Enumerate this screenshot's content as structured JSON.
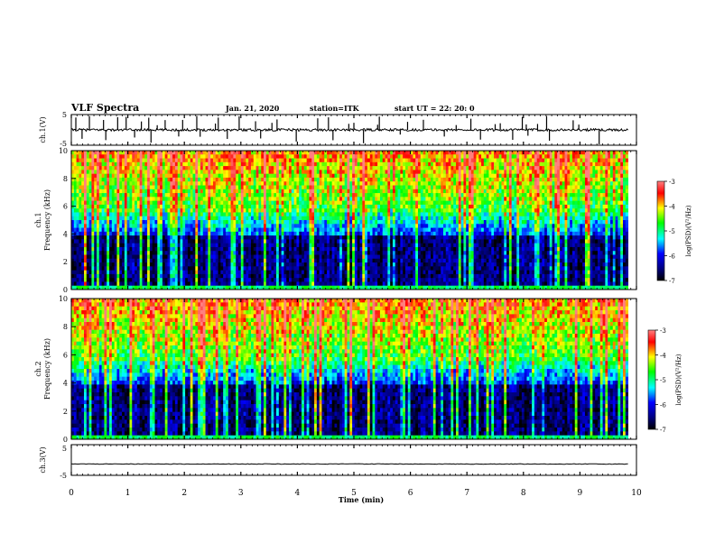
{
  "header": {
    "title": "VLF Spectra",
    "date": "Jan. 21, 2020",
    "station": "station=ITK",
    "start": "start UT =  22: 20: 0"
  },
  "chart_data": [
    {
      "type": "line",
      "panel": "ch1-waveform",
      "ylabel": "ch.1(V)",
      "ylim": [
        -5,
        5
      ],
      "yticks": [
        "5",
        "-5"
      ],
      "baseline": 0,
      "spikes_min": [
        0.08,
        0.19,
        0.32,
        0.57,
        0.61,
        0.82,
        0.97,
        1.12,
        1.24,
        1.37,
        1.41,
        1.52,
        1.66,
        1.9,
        1.97,
        2.22,
        2.28,
        2.55,
        2.6,
        2.76,
        2.97,
        3.26,
        3.35,
        3.55,
        3.64,
        3.98,
        4.36,
        4.55,
        4.63,
        4.91,
        5.0,
        5.17,
        5.42,
        5.45,
        5.82,
        5.95,
        6.23,
        6.6,
        6.81,
        7.07,
        7.24,
        7.5,
        7.59,
        7.81,
        7.98,
        8.05,
        8.08,
        8.25,
        8.41,
        8.46,
        8.88,
        8.98,
        9.34
      ]
    },
    {
      "type": "heatmap",
      "panel": "ch1-spectrogram",
      "ylabel": "ch.1\nFrequency (kHz)",
      "ylabel_lines": [
        "ch.1",
        "Frequency (kHz)"
      ],
      "ylim": [
        0,
        10
      ],
      "yticks": [
        "0",
        "2",
        "4",
        "6",
        "8",
        "10"
      ],
      "xlim": [
        0,
        9.85
      ],
      "colorbar": {
        "label": "log(PSD)(V²/Hz)",
        "range": [
          -7,
          -3
        ],
        "ticks": [
          "-3",
          "-4",
          "-5",
          "-6",
          "-7"
        ]
      }
    },
    {
      "type": "heatmap",
      "panel": "ch2-spectrogram",
      "ylabel": "ch.2\nFrequency (kHz)",
      "ylabel_lines": [
        "ch.2",
        "Frequency (kHz)"
      ],
      "ylim": [
        0,
        10
      ],
      "yticks": [
        "0",
        "2",
        "4",
        "6",
        "8",
        "10"
      ],
      "xlim": [
        0,
        9.85
      ],
      "colorbar": {
        "label": "log(PSD)(V²/Hz)",
        "range": [
          -7,
          -3
        ],
        "ticks": [
          "-3",
          "-4",
          "-5",
          "-6",
          "-7"
        ]
      }
    },
    {
      "type": "line",
      "panel": "ch3-waveform",
      "ylabel": "ch.3(V)",
      "ylim": [
        -5,
        5
      ],
      "yticks": [
        "5",
        "-5"
      ],
      "baseline": -1.3
    }
  ],
  "xaxis": {
    "label": "Time (min)",
    "xlim": [
      0,
      10
    ],
    "ticks": [
      "0",
      "1",
      "2",
      "3",
      "4",
      "5",
      "6",
      "7",
      "8",
      "9",
      "10"
    ]
  },
  "colors": {
    "background": "#ffffff",
    "axis": "#000000",
    "colormap": [
      "#000000",
      "#000080",
      "#0000ff",
      "#00ffff",
      "#00ff00",
      "#ffff00",
      "#ff0000",
      "#800000"
    ]
  }
}
